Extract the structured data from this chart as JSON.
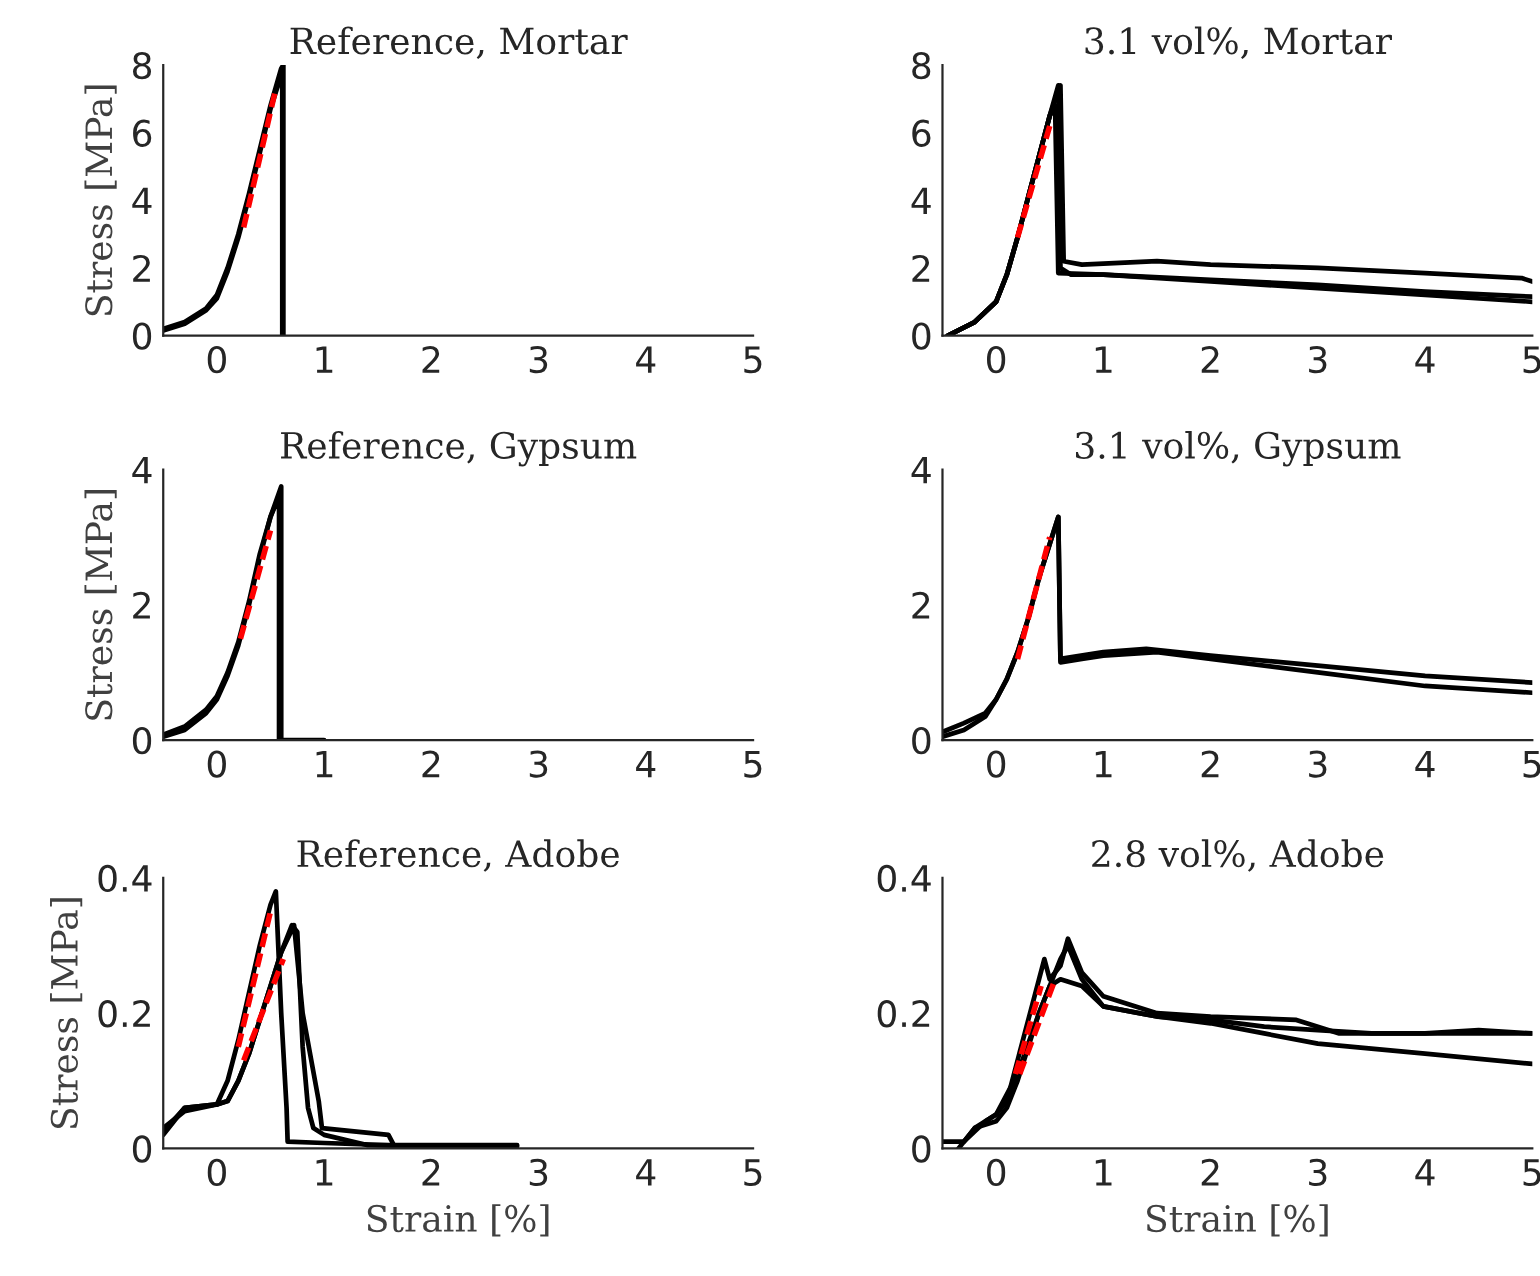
{
  "chart_data": [
    {
      "type": "line",
      "title": "Reference, Mortar",
      "ylabel": "Stress [MPa]",
      "xlim": [
        -0.5,
        5
      ],
      "xticks": [
        0,
        1,
        2,
        3,
        4,
        5
      ],
      "ylim": [
        0,
        8
      ],
      "yticks": [
        0,
        2,
        4,
        6,
        8
      ],
      "series": [
        {
          "color": "#000000",
          "line_style": "solid",
          "x": [
            -0.5,
            -0.3,
            -0.1,
            0,
            0.1,
            0.2,
            0.3,
            0.4,
            0.5,
            0.6,
            0.62,
            0.62
          ],
          "values": [
            0.2,
            0.4,
            0.8,
            1.2,
            2,
            3,
            4.2,
            5.5,
            6.8,
            7.9,
            8,
            0
          ]
        },
        {
          "color": "#000000",
          "line_style": "solid",
          "x": [
            -0.5,
            -0.3,
            -0.1,
            0,
            0.1,
            0.2,
            0.3,
            0.4,
            0.5,
            0.6,
            0.61,
            0.61
          ],
          "values": [
            0.15,
            0.35,
            0.75,
            1.1,
            1.9,
            2.9,
            4.1,
            5.4,
            6.7,
            7.7,
            7.8,
            0
          ]
        },
        {
          "color": "#ff0000",
          "line_style": "dashed",
          "x": [
            0.25,
            0.55
          ],
          "values": [
            3.2,
            7.3
          ]
        }
      ]
    },
    {
      "type": "line",
      "title": "3.1 vol%, Mortar",
      "xlim": [
        -0.5,
        5
      ],
      "xticks": [
        0,
        1,
        2,
        3,
        4,
        5
      ],
      "ylim": [
        0,
        8
      ],
      "yticks": [
        0,
        2,
        4,
        6,
        8
      ],
      "series": [
        {
          "color": "#000000",
          "line_style": "solid",
          "x": [
            -0.45,
            -0.2,
            0,
            0.1,
            0.2,
            0.3,
            0.4,
            0.5,
            0.58,
            0.6,
            0.7,
            1,
            2,
            3,
            4,
            5
          ],
          "values": [
            0,
            0.4,
            1,
            1.8,
            2.9,
            4.1,
            5.3,
            6.5,
            7.4,
            2.0,
            1.8,
            1.8,
            1.6,
            1.4,
            1.2,
            1.0
          ]
        },
        {
          "color": "#000000",
          "line_style": "solid",
          "x": [
            -0.45,
            -0.2,
            0,
            0.1,
            0.2,
            0.3,
            0.4,
            0.5,
            0.6,
            0.63,
            0.8,
            1.5,
            2,
            3,
            4,
            4.9,
            5
          ],
          "values": [
            0,
            0.4,
            1,
            1.8,
            2.9,
            4.1,
            5.3,
            6.5,
            7.4,
            2.2,
            2.1,
            2.2,
            2.1,
            2.0,
            1.85,
            1.7,
            1.6
          ]
        },
        {
          "color": "#000000",
          "line_style": "solid",
          "x": [
            -0.45,
            -0.2,
            0,
            0.1,
            0.2,
            0.3,
            0.4,
            0.5,
            0.55,
            0.58,
            1,
            2,
            3,
            4,
            5
          ],
          "values": [
            0,
            0.4,
            1,
            1.8,
            2.9,
            4.1,
            5.3,
            6.5,
            6.8,
            1.85,
            1.8,
            1.65,
            1.5,
            1.3,
            1.15
          ]
        },
        {
          "color": "#ff0000",
          "line_style": "dashed",
          "x": [
            0.2,
            0.5
          ],
          "values": [
            2.9,
            6.2
          ]
        }
      ]
    },
    {
      "type": "line",
      "title": "Reference, Gypsum",
      "ylabel": "Stress [MPa]",
      "xlim": [
        -0.5,
        5
      ],
      "xticks": [
        0,
        1,
        2,
        3,
        4,
        5
      ],
      "ylim": [
        0,
        4
      ],
      "yticks": [
        0,
        2,
        4
      ],
      "series": [
        {
          "color": "#000000",
          "line_style": "solid",
          "x": [
            -0.5,
            -0.3,
            -0.1,
            0,
            0.1,
            0.2,
            0.3,
            0.4,
            0.5,
            0.6,
            0.6,
            1.0
          ],
          "values": [
            0.05,
            0.15,
            0.4,
            0.6,
            0.95,
            1.4,
            2.0,
            2.7,
            3.3,
            3.75,
            0,
            0
          ]
        },
        {
          "color": "#000000",
          "line_style": "solid",
          "x": [
            -0.5,
            -0.3,
            -0.1,
            0,
            0.1,
            0.2,
            0.3,
            0.4,
            0.5,
            0.58,
            0.58
          ],
          "values": [
            0.08,
            0.2,
            0.45,
            0.65,
            1.0,
            1.45,
            2.05,
            2.75,
            3.3,
            3.6,
            0
          ]
        },
        {
          "color": "#ff0000",
          "line_style": "dashed",
          "x": [
            0.22,
            0.5
          ],
          "values": [
            1.5,
            3.1
          ]
        }
      ]
    },
    {
      "type": "line",
      "title": "3.1 vol%, Gypsum",
      "xlim": [
        -0.5,
        5
      ],
      "xticks": [
        0,
        1,
        2,
        3,
        4,
        5
      ],
      "ylim": [
        0,
        4
      ],
      "yticks": [
        0,
        2,
        4
      ],
      "series": [
        {
          "color": "#000000",
          "line_style": "solid",
          "x": [
            -0.5,
            -0.3,
            -0.1,
            0,
            0.1,
            0.2,
            0.3,
            0.4,
            0.5,
            0.58,
            0.6,
            0.8,
            1,
            1.5,
            2,
            3,
            4,
            5
          ],
          "values": [
            0.05,
            0.15,
            0.35,
            0.6,
            0.9,
            1.3,
            1.8,
            2.4,
            2.9,
            3.3,
            1.15,
            1.2,
            1.25,
            1.3,
            1.2,
            1.0,
            0.8,
            0.7
          ]
        },
        {
          "color": "#000000",
          "line_style": "solid",
          "x": [
            -0.5,
            -0.3,
            -0.1,
            0,
            0.1,
            0.2,
            0.3,
            0.4,
            0.5,
            0.58,
            0.6,
            1,
            1.4,
            2,
            3,
            4,
            5
          ],
          "values": [
            0.12,
            0.25,
            0.4,
            0.6,
            0.9,
            1.3,
            1.8,
            2.4,
            2.9,
            3.3,
            1.2,
            1.3,
            1.35,
            1.25,
            1.1,
            0.95,
            0.85
          ]
        },
        {
          "color": "#ff0000",
          "line_style": "dashed",
          "x": [
            0.2,
            0.5
          ],
          "values": [
            1.2,
            3.0
          ]
        }
      ]
    },
    {
      "type": "line",
      "title": "Reference, Adobe",
      "ylabel": "Stress [MPa]",
      "xlabel": "Strain [%]",
      "xlim": [
        -0.5,
        5
      ],
      "xticks": [
        0,
        1,
        2,
        3,
        4,
        5
      ],
      "ylim": [
        0,
        0.4
      ],
      "yticks": [
        0,
        0.2,
        0.4
      ],
      "series": [
        {
          "color": "#000000",
          "line_style": "solid",
          "x": [
            -0.5,
            -0.3,
            0,
            0.1,
            0.2,
            0.3,
            0.4,
            0.5,
            0.55,
            0.6,
            0.65,
            0.66,
            1,
            1.6,
            2.8
          ],
          "values": [
            0.02,
            0.06,
            0.065,
            0.1,
            0.16,
            0.23,
            0.3,
            0.36,
            0.38,
            0.2,
            0.06,
            0.01,
            0.008,
            0.005,
            0.005
          ]
        },
        {
          "color": "#000000",
          "line_style": "solid",
          "x": [
            -0.5,
            -0.3,
            0,
            0.1,
            0.2,
            0.3,
            0.4,
            0.5,
            0.6,
            0.7,
            0.75,
            0.8,
            0.85,
            0.9,
            1.0,
            1.4,
            2.0,
            2.8
          ],
          "values": [
            0.025,
            0.06,
            0.065,
            0.07,
            0.1,
            0.14,
            0.19,
            0.24,
            0.29,
            0.33,
            0.32,
            0.15,
            0.06,
            0.03,
            0.02,
            0.005,
            0.003,
            0.003
          ]
        },
        {
          "color": "#000000",
          "line_style": "solid",
          "x": [
            -0.5,
            -0.3,
            0,
            0.1,
            0.2,
            0.3,
            0.4,
            0.5,
            0.6,
            0.72,
            0.8,
            0.95,
            0.98,
            1.6,
            1.65,
            2.5
          ],
          "values": [
            0.03,
            0.055,
            0.065,
            0.07,
            0.1,
            0.14,
            0.19,
            0.24,
            0.29,
            0.33,
            0.2,
            0.07,
            0.03,
            0.02,
            0.005,
            0.003
          ]
        },
        {
          "color": "#ff0000",
          "line_style": "dashed",
          "x": [
            0.2,
            0.5
          ],
          "values": [
            0.15,
            0.35
          ]
        },
        {
          "color": "#ff0000",
          "line_style": "dashed",
          "x": [
            0.25,
            0.62
          ],
          "values": [
            0.13,
            0.28
          ]
        }
      ]
    },
    {
      "type": "line",
      "title": "2.8 vol%, Adobe",
      "xlabel": "Strain [%]",
      "xlim": [
        -0.5,
        5
      ],
      "xticks": [
        0,
        1,
        2,
        3,
        4,
        5
      ],
      "ylim": [
        0,
        0.4
      ],
      "yticks": [
        0,
        0.2,
        0.4
      ],
      "series": [
        {
          "color": "#000000",
          "line_style": "solid",
          "x": [
            -0.5,
            -0.3,
            -0.2,
            0,
            0.1,
            0.2,
            0.3,
            0.4,
            0.45,
            0.5,
            0.6,
            0.67,
            0.8,
            1,
            1.5,
            2,
            2.8,
            3.2,
            4,
            5
          ],
          "values": [
            0.01,
            0.01,
            0.03,
            0.05,
            0.07,
            0.13,
            0.19,
            0.25,
            0.28,
            0.25,
            0.27,
            0.31,
            0.26,
            0.225,
            0.2,
            0.195,
            0.19,
            0.17,
            0.17,
            0.17
          ]
        },
        {
          "color": "#000000",
          "line_style": "solid",
          "x": [
            -0.35,
            -0.2,
            0,
            0.1,
            0.2,
            0.3,
            0.4,
            0.5,
            0.6,
            0.8,
            1,
            1.5,
            2,
            2.5,
            3,
            4,
            5
          ],
          "values": [
            0,
            0.03,
            0.04,
            0.06,
            0.1,
            0.15,
            0.2,
            0.24,
            0.25,
            0.24,
            0.21,
            0.195,
            0.185,
            0.17,
            0.155,
            0.14,
            0.125
          ]
        },
        {
          "color": "#000000",
          "line_style": "solid",
          "x": [
            -0.3,
            -0.1,
            0,
            0.2,
            0.4,
            0.6,
            0.67,
            0.8,
            1,
            1.5,
            2,
            2.5,
            3,
            3.5,
            4,
            4.5,
            5
          ],
          "values": [
            0.01,
            0.04,
            0.05,
            0.11,
            0.2,
            0.28,
            0.3,
            0.25,
            0.21,
            0.195,
            0.19,
            0.18,
            0.175,
            0.17,
            0.17,
            0.175,
            0.17
          ]
        },
        {
          "color": "#ff0000",
          "line_style": "dashed",
          "x": [
            0.18,
            0.42
          ],
          "values": [
            0.11,
            0.24
          ]
        },
        {
          "color": "#ff0000",
          "line_style": "dashed",
          "x": [
            0.22,
            0.55
          ],
          "values": [
            0.11,
            0.25
          ]
        }
      ]
    }
  ]
}
